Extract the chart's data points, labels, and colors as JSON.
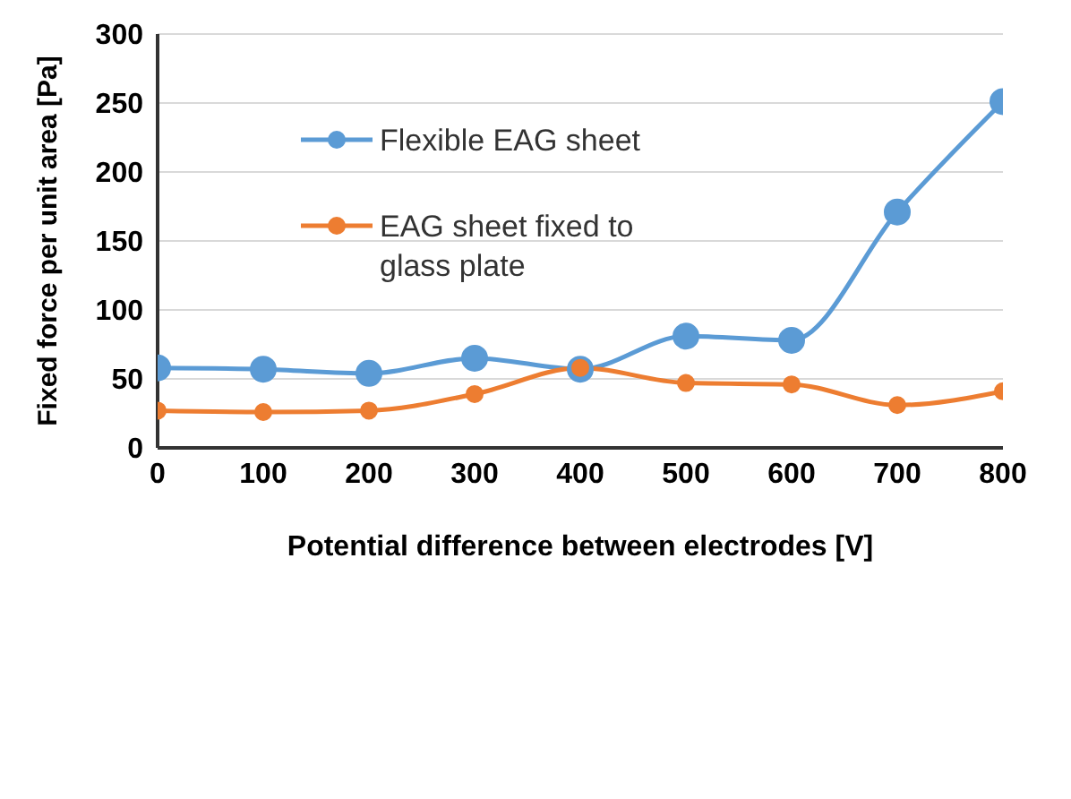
{
  "chart_data": {
    "type": "line",
    "xlabel": "Potential difference  between electrodes [V]",
    "ylabel": "Fixed force per unit area [Pa]",
    "x": [
      0,
      100,
      200,
      300,
      400,
      500,
      600,
      700,
      800
    ],
    "series": [
      {
        "name": "Flexible EAG sheet",
        "color": "#5b9bd5",
        "values": [
          58,
          57,
          54,
          65,
          57,
          81,
          78,
          171,
          251
        ]
      },
      {
        "name": "EAG sheet fixed to glass plate",
        "color": "#ed7d31",
        "values": [
          27,
          26,
          27,
          39,
          58,
          47,
          46,
          31,
          41
        ]
      }
    ],
    "xlim": [
      0,
      800
    ],
    "xticks": [
      0,
      100,
      200,
      300,
      400,
      500,
      600,
      700,
      800
    ],
    "ylim": [
      0,
      300
    ],
    "yticks": [
      0,
      50,
      100,
      150,
      200,
      250,
      300
    ],
    "grid": "y",
    "legend": "top left",
    "marker": "circle",
    "line_style": "solid"
  }
}
